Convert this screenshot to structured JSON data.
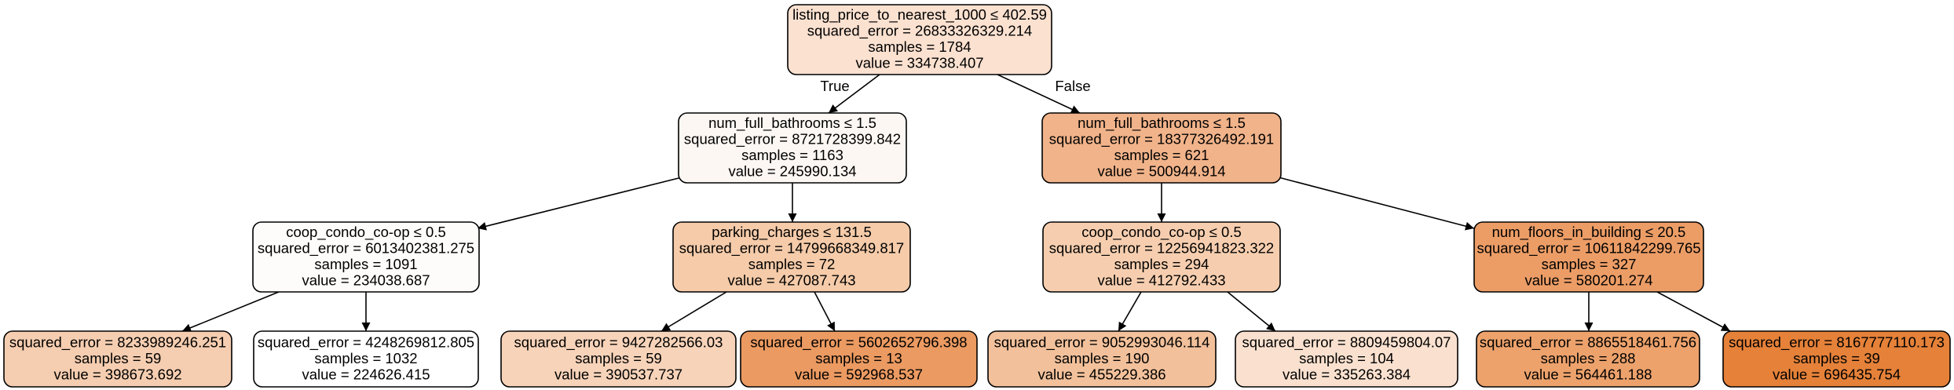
{
  "tree": {
    "edge_labels": {
      "true_label": "True",
      "false_label": "False"
    },
    "nodes": [
      {
        "id": "n0",
        "fill": "#fbe1d0",
        "lines": [
          "listing_price_to_nearest_1000 ≤ 402.59",
          "squared_error = 26833326329.214",
          "samples = 1784",
          "value = 334738.407"
        ]
      },
      {
        "id": "n1",
        "fill": "#fdf7f3",
        "lines": [
          "num_full_bathrooms ≤ 1.5",
          "squared_error = 8721728399.842",
          "samples = 1163",
          "value = 245990.134"
        ]
      },
      {
        "id": "n2",
        "fill": "#f1b38a",
        "lines": [
          "num_full_bathrooms ≤ 1.5",
          "squared_error = 18377326492.191",
          "samples = 621",
          "value = 500944.914"
        ]
      },
      {
        "id": "n3",
        "fill": "#fefcfa",
        "lines": [
          "coop_condo_co-op ≤ 0.5",
          "squared_error = 6013402381.275",
          "samples = 1091",
          "value = 234038.687"
        ]
      },
      {
        "id": "n4",
        "fill": "#f5cba9",
        "lines": [
          "parking_charges ≤ 131.5",
          "squared_error = 14799668349.817",
          "samples = 72",
          "value = 427087.743"
        ]
      },
      {
        "id": "n5",
        "fill": "#f6ceaf",
        "lines": [
          "coop_condo_co-op ≤ 0.5",
          "squared_error = 12256941823.322",
          "samples = 294",
          "value = 412792.433"
        ]
      },
      {
        "id": "n6",
        "fill": "#ec9d66",
        "lines": [
          "num_floors_in_building ≤ 20.5",
          "squared_error = 10611842299.765",
          "samples = 327",
          "value = 580201.274"
        ]
      },
      {
        "id": "n7",
        "fill": "#f5cdb0",
        "lines": [
          "squared_error = 8233989246.251",
          "samples = 59",
          "value = 398673.692"
        ]
      },
      {
        "id": "n8",
        "fill": "#ffffff",
        "lines": [
          "squared_error = 4248269812.805",
          "samples = 1032",
          "value = 224626.415"
        ]
      },
      {
        "id": "n9",
        "fill": "#f7d3b9",
        "lines": [
          "squared_error = 9427282566.03",
          "samples = 59",
          "value = 390537.737"
        ]
      },
      {
        "id": "n10",
        "fill": "#eb9a61",
        "lines": [
          "squared_error = 5602652796.398",
          "samples = 13",
          "value = 592968.537"
        ]
      },
      {
        "id": "n11",
        "fill": "#f2c19b",
        "lines": [
          "squared_error = 9052993046.114",
          "samples = 190",
          "value = 455229.386"
        ]
      },
      {
        "id": "n12",
        "fill": "#fae1cf",
        "lines": [
          "squared_error = 8809459804.07",
          "samples = 104",
          "value = 335263.384"
        ]
      },
      {
        "id": "n13",
        "fill": "#eda26c",
        "lines": [
          "squared_error = 8865518461.756",
          "samples = 288",
          "value = 564461.188"
        ]
      },
      {
        "id": "n14",
        "fill": "#e58139",
        "lines": [
          "squared_error = 8167777110.173",
          "samples = 39",
          "value = 696435.754"
        ]
      }
    ],
    "edges": [
      {
        "from": "n0",
        "to": "n1",
        "label": "true_label"
      },
      {
        "from": "n0",
        "to": "n2",
        "label": "false_label"
      },
      {
        "from": "n1",
        "to": "n3"
      },
      {
        "from": "n1",
        "to": "n4"
      },
      {
        "from": "n2",
        "to": "n5"
      },
      {
        "from": "n2",
        "to": "n6"
      },
      {
        "from": "n3",
        "to": "n7"
      },
      {
        "from": "n3",
        "to": "n8"
      },
      {
        "from": "n4",
        "to": "n9"
      },
      {
        "from": "n4",
        "to": "n10"
      },
      {
        "from": "n5",
        "to": "n11"
      },
      {
        "from": "n5",
        "to": "n12"
      },
      {
        "from": "n6",
        "to": "n13"
      },
      {
        "from": "n6",
        "to": "n14"
      }
    ]
  }
}
